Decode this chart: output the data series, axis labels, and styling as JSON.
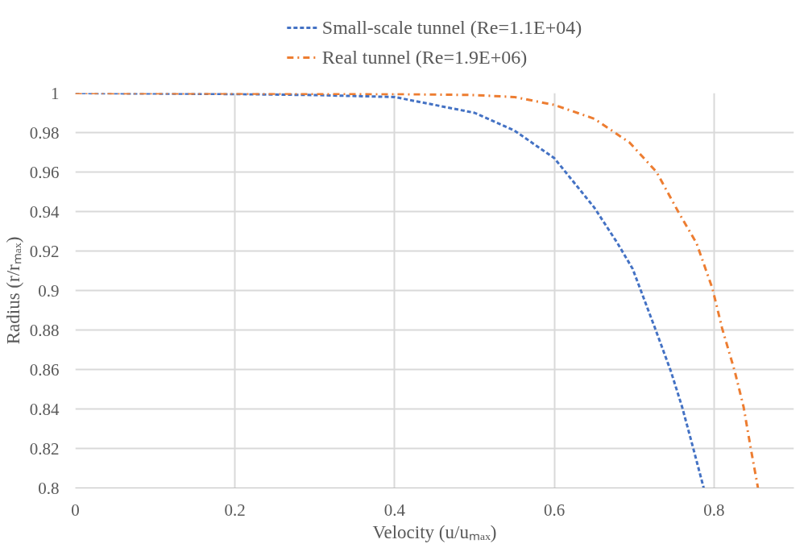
{
  "chart_data": {
    "type": "line",
    "xlabel": "Velocity (u/uₘₐₓ)",
    "ylabel": "Radius (r/rₘₐₓ)",
    "xlim": [
      0,
      0.9
    ],
    "ylim": [
      0.8,
      1
    ],
    "xticks": [
      0,
      0.2,
      0.4,
      0.6,
      0.8
    ],
    "yticks": [
      0.8,
      0.82,
      0.84,
      0.86,
      0.88,
      0.9,
      0.92,
      0.94,
      0.96,
      0.98,
      1
    ],
    "grid": true,
    "legend": "top",
    "series": [
      {
        "name": "Small-scale tunnel (Re=1.1E+04)",
        "color": "#4472c4",
        "line_style": "dashed",
        "x": [
          0,
          0.2,
          0.3,
          0.4,
          0.5,
          0.55,
          0.6,
          0.65,
          0.679,
          0.698,
          0.726,
          0.746,
          0.76,
          0.774,
          0.787
        ],
        "values": [
          1,
          0.9995,
          0.999,
          0.998,
          0.99,
          0.981,
          0.967,
          0.942,
          0.924,
          0.911,
          0.881,
          0.859,
          0.841,
          0.82,
          0.8
        ]
      },
      {
        "name": "Real tunnel (Re=1.9E+06)",
        "color": "#ed7d31",
        "line_style": "dashdot",
        "x": [
          0,
          0.4,
          0.5,
          0.55,
          0.6,
          0.65,
          0.694,
          0.728,
          0.755,
          0.778,
          0.798,
          0.81,
          0.826,
          0.837,
          0.846,
          0.855
        ],
        "values": [
          1,
          0.9995,
          0.999,
          0.998,
          0.994,
          0.987,
          0.975,
          0.96,
          0.94,
          0.924,
          0.901,
          0.881,
          0.859,
          0.841,
          0.82,
          0.8
        ]
      }
    ]
  }
}
